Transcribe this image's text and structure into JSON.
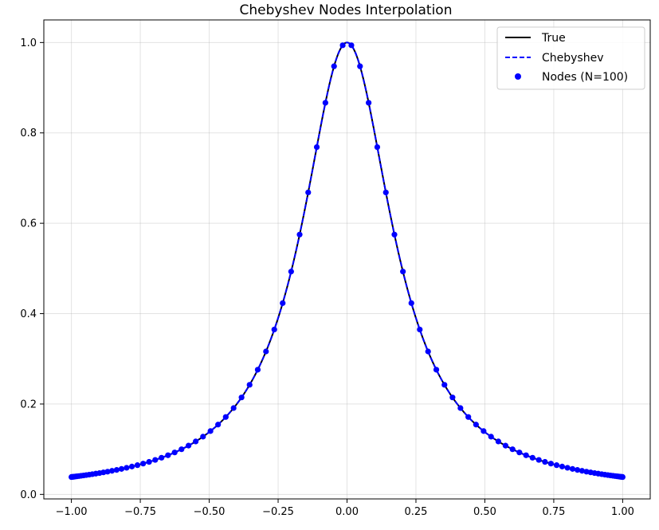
{
  "chart_data": {
    "type": "line",
    "title": "Chebyshev Nodes Interpolation",
    "xlabel": "",
    "ylabel": "",
    "xlim": [
      -1.1,
      1.1
    ],
    "ylim": [
      -0.01,
      1.05
    ],
    "grid": true,
    "legend_position": "top-right",
    "x_ticks": [
      -1.0,
      -0.75,
      -0.5,
      -0.25,
      0.0,
      0.25,
      0.5,
      0.75,
      1.0
    ],
    "x_tick_labels": [
      "−1.00",
      "−0.75",
      "−0.50",
      "−0.25",
      "0.00",
      "0.25",
      "0.50",
      "0.75",
      "1.00"
    ],
    "y_ticks": [
      0.0,
      0.2,
      0.4,
      0.6,
      0.8,
      1.0
    ],
    "y_tick_labels": [
      "0.0",
      "0.2",
      "0.4",
      "0.6",
      "0.8",
      "1.0"
    ],
    "function": "1/(1+25x^2)",
    "series": [
      {
        "name": "True",
        "style": "solid",
        "color": "#000000"
      },
      {
        "name": "Chebyshev",
        "style": "dashed",
        "color": "#0000ff"
      },
      {
        "name": "Nodes (N=100)",
        "style": "markers",
        "color": "#0000ff",
        "count": 100
      }
    ]
  }
}
